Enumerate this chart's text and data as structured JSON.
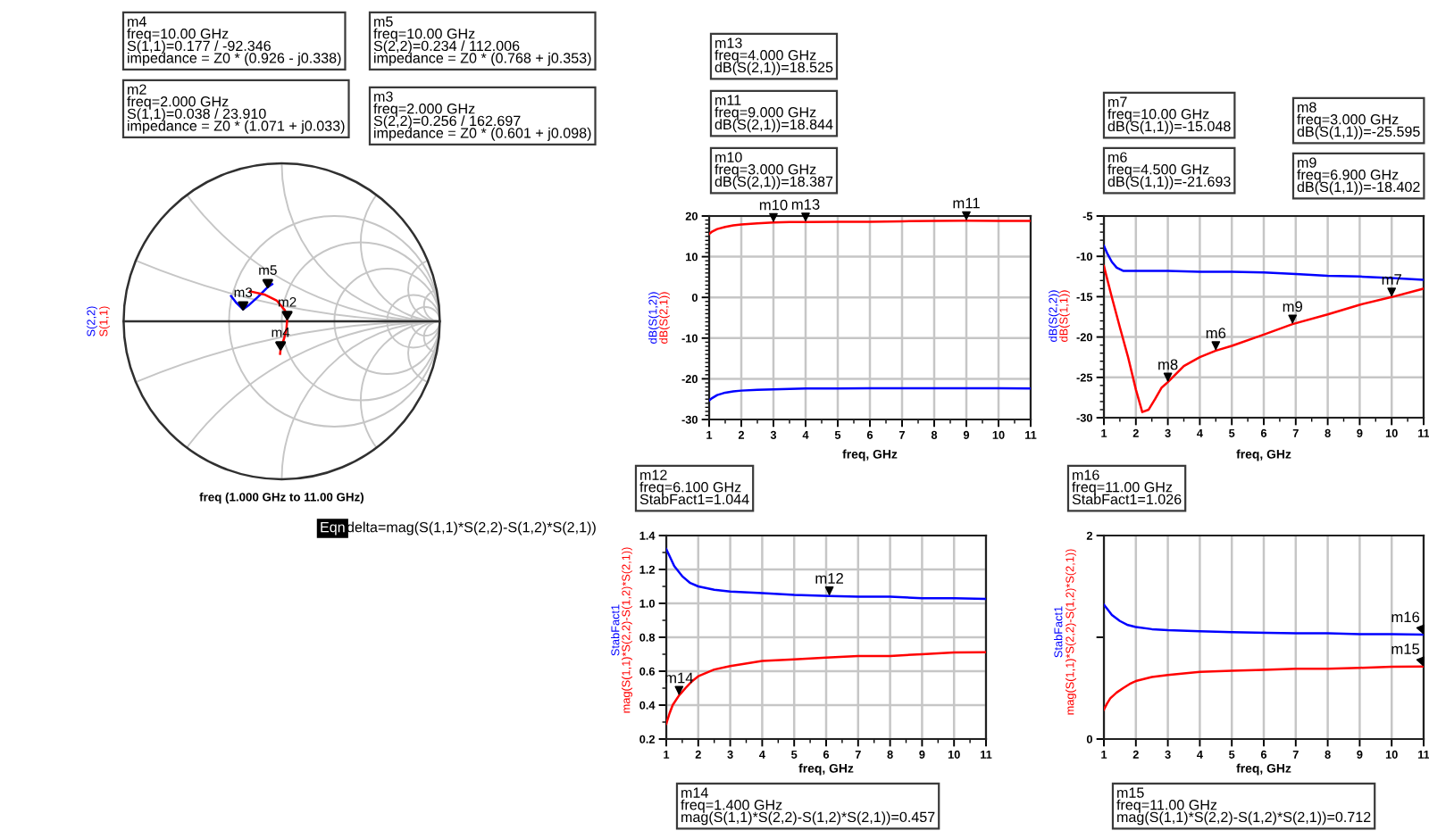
{
  "chart_data": [
    {
      "type": "other",
      "xlabel": "freq (1.000 GHz to 11.00 GHz)",
      "series": [
        {
          "name": "S(2,2)",
          "color": "#0000ff"
        },
        {
          "name": "S(1,1)",
          "color": "#ff0000"
        }
      ],
      "annotations": [
        "m4\nfreq=10.00 GHz\nS(1,1)=0.177 / -92.346\nimpedance = Z0 * (0.926 - j0.338)",
        "m2\nfreq=2.000 GHz\nS(1,1)=0.038 / 23.910\nimpedance = Z0 * (1.071 + j0.033)",
        "m5\nfreq=10.00 GHz\nS(2,2)=0.234 / 112.006\nimpedance = Z0 * (0.768 + j0.353)",
        "m3\nfreq=2.000 GHz\nS(2,2)=0.256 / 162.697\nimpedance = Z0 * (0.601 + j0.098)",
        "m5",
        "m3",
        "m2",
        "m4",
        "Eqn",
        "delta=mag(S(1,1)*S(2,2)-S(1,2)*S(2,1))"
      ]
    },
    {
      "type": "line",
      "xlabel": "freq, GHz",
      "xlim": [
        1,
        11
      ],
      "xticks": [
        1,
        2,
        3,
        4,
        5,
        6,
        7,
        8,
        9,
        10,
        11
      ],
      "ylim": [
        -30,
        20
      ],
      "yticks": [
        -30,
        -20,
        -10,
        0,
        10,
        20
      ],
      "grid": true,
      "series": [
        {
          "name": "dB(S(1,2))",
          "color": "#0000ff",
          "x": [
            1,
            1.1,
            1.25,
            1.5,
            1.75,
            2,
            2.5,
            3,
            3.5,
            4,
            5,
            6,
            7,
            8,
            9,
            10,
            11
          ],
          "values": [
            -25.3,
            -24.7,
            -24.0,
            -23.4,
            -23.1,
            -22.9,
            -22.7,
            -22.6,
            -22.5,
            -22.4,
            -22.4,
            -22.3,
            -22.3,
            -22.3,
            -22.3,
            -22.3,
            -22.4
          ]
        },
        {
          "name": "dB(S(2,1))",
          "color": "#ff0000",
          "x": [
            1,
            1.1,
            1.25,
            1.5,
            1.75,
            2,
            2.5,
            3,
            3.5,
            4,
            5,
            6,
            7,
            8,
            9,
            10,
            11
          ],
          "values": [
            15.6,
            16.2,
            16.8,
            17.3,
            17.7,
            17.9,
            18.2,
            18.387,
            18.5,
            18.525,
            18.6,
            18.6,
            18.7,
            18.8,
            18.844,
            18.8,
            18.8
          ]
        }
      ],
      "annotations": [
        "m13\nfreq=4.000 GHz\ndB(S(2,1))=18.525",
        "m11\nfreq=9.000 GHz\ndB(S(2,1))=18.844",
        "m10\nfreq=3.000 GHz\ndB(S(2,1))=18.387",
        {
          "text": "m10",
          "x": 3,
          "y": 18.387
        },
        {
          "text": "m13",
          "x": 4,
          "y": 18.525
        },
        {
          "text": "m11",
          "x": 9,
          "y": 18.844
        }
      ]
    },
    {
      "type": "line",
      "xlabel": "freq, GHz",
      "xlim": [
        1,
        11
      ],
      "xticks": [
        1,
        2,
        3,
        4,
        5,
        6,
        7,
        8,
        9,
        10,
        11
      ],
      "ylim": [
        -30,
        -5
      ],
      "yticks": [
        -30,
        -25,
        -20,
        -15,
        -10,
        -5
      ],
      "grid": true,
      "series": [
        {
          "name": "dB(S(2,2))",
          "color": "#0000ff",
          "x": [
            1,
            1.1,
            1.25,
            1.4,
            1.6,
            2,
            3,
            4,
            5,
            6,
            7,
            8,
            9,
            10,
            11
          ],
          "values": [
            -8.7,
            -9.6,
            -10.7,
            -11.4,
            -11.8,
            -11.8,
            -11.8,
            -11.9,
            -11.9,
            -12.0,
            -12.2,
            -12.4,
            -12.5,
            -12.7,
            -12.9
          ]
        },
        {
          "name": "dB(S(1,1))",
          "color": "#ff0000",
          "x": [
            1,
            1.25,
            1.5,
            1.75,
            2,
            2.2,
            2.4,
            2.6,
            2.8,
            3,
            3.5,
            4,
            4.5,
            5,
            6,
            6.9,
            8,
            9,
            10,
            11
          ],
          "values": [
            -11.2,
            -15.1,
            -18.8,
            -22.4,
            -26.5,
            -29.3,
            -29.0,
            -27.7,
            -26.3,
            -25.595,
            -23.6,
            -22.5,
            -21.693,
            -21.1,
            -19.7,
            -18.402,
            -17.2,
            -16.0,
            -15.048,
            -14.0
          ]
        }
      ],
      "annotations": [
        "m7\nfreq=10.00 GHz\ndB(S(1,1))=-15.048",
        "m6\nfreq=4.500 GHz\ndB(S(1,1))=-21.693",
        "m8\nfreq=3.000 GHz\ndB(S(1,1))=-25.595",
        "m9\nfreq=6.900 GHz\ndB(S(1,1))=-18.402",
        {
          "text": "m8",
          "x": 3,
          "y": -25.595
        },
        {
          "text": "m6",
          "x": 4.5,
          "y": -21.693
        },
        {
          "text": "m9",
          "x": 6.9,
          "y": -18.402
        },
        {
          "text": "m7",
          "x": 10,
          "y": -15.048
        }
      ]
    },
    {
      "type": "line",
      "xlabel": "freq, GHz",
      "xlim": [
        1,
        11
      ],
      "xticks": [
        1,
        2,
        3,
        4,
        5,
        6,
        7,
        8,
        9,
        10,
        11
      ],
      "ylim": [
        0.2,
        1.4
      ],
      "yticks": [
        0.2,
        0.4,
        0.6,
        0.8,
        {
          "value": 1.0,
          "label": "1.0"
        },
        1.2,
        1.4
      ],
      "grid": true,
      "series": [
        {
          "name": "StabFact1",
          "color": "#0000ff",
          "x": [
            1,
            1.1,
            1.25,
            1.5,
            1.75,
            2,
            2.5,
            3,
            4,
            5,
            6.1,
            7,
            8,
            9,
            10,
            11
          ],
          "values": [
            1.32,
            1.28,
            1.22,
            1.16,
            1.12,
            1.1,
            1.08,
            1.07,
            1.06,
            1.05,
            1.044,
            1.04,
            1.04,
            1.03,
            1.03,
            1.026
          ]
        },
        {
          "name": "mag(S(1,1)*S(2,2)-S(1,2)*S(2,1))",
          "color": "#ff0000",
          "x": [
            1,
            1.1,
            1.2,
            1.4,
            1.6,
            1.8,
            2,
            2.5,
            3,
            4,
            5,
            6,
            7,
            8,
            9,
            10,
            11
          ],
          "values": [
            0.29,
            0.35,
            0.4,
            0.457,
            0.5,
            0.54,
            0.57,
            0.61,
            0.63,
            0.66,
            0.67,
            0.68,
            0.69,
            0.69,
            0.7,
            0.71,
            0.712
          ]
        }
      ],
      "annotations": [
        "m12\nfreq=6.100 GHz\nStabFact1=1.044",
        "m14\nfreq=1.400 GHz\nmag(S(1,1)*S(2,2)-S(1,2)*S(2,1))=0.457",
        {
          "text": "m12",
          "x": 6.1,
          "y": 1.044
        },
        {
          "text": "m14",
          "x": 1.4,
          "y": 0.457
        }
      ]
    },
    {
      "type": "line",
      "xlabel": "freq, GHz",
      "xlim": [
        1,
        11
      ],
      "xticks": [
        1,
        2,
        3,
        4,
        5,
        6,
        7,
        8,
        9,
        10,
        11
      ],
      "ylim": [
        0,
        2
      ],
      "yticks": [
        0,
        {
          "value": 1,
          "label": null
        },
        2
      ],
      "grid": "x",
      "series": [
        {
          "name": "StabFact1",
          "color": "#0000ff",
          "x": [
            1,
            1.1,
            1.25,
            1.5,
            1.75,
            2,
            2.5,
            3,
            4,
            5,
            6.1,
            7,
            8,
            9,
            10,
            11
          ],
          "values": [
            1.32,
            1.28,
            1.22,
            1.16,
            1.12,
            1.1,
            1.08,
            1.07,
            1.06,
            1.05,
            1.044,
            1.04,
            1.04,
            1.03,
            1.03,
            1.026
          ]
        },
        {
          "name": "mag(S(1,1)*S(2,2)-S(1,2)*S(2,1))",
          "color": "#ff0000",
          "x": [
            1,
            1.1,
            1.2,
            1.4,
            1.6,
            1.8,
            2,
            2.5,
            3,
            4,
            5,
            6,
            7,
            8,
            9,
            10,
            11
          ],
          "values": [
            0.29,
            0.35,
            0.4,
            0.457,
            0.5,
            0.54,
            0.57,
            0.61,
            0.63,
            0.66,
            0.67,
            0.68,
            0.69,
            0.69,
            0.7,
            0.71,
            0.712
          ]
        }
      ],
      "annotations": [
        "m16\nfreq=11.00 GHz\nStabFact1=1.026",
        "m15\nfreq=11.00 GHz\nmag(S(1,1)*S(2,2)-S(1,2)*S(2,1))=0.712",
        {
          "text": "m16",
          "x": 11,
          "y": 1.026
        },
        {
          "text": "m15",
          "x": 11,
          "y": 0.712
        }
      ]
    }
  ]
}
